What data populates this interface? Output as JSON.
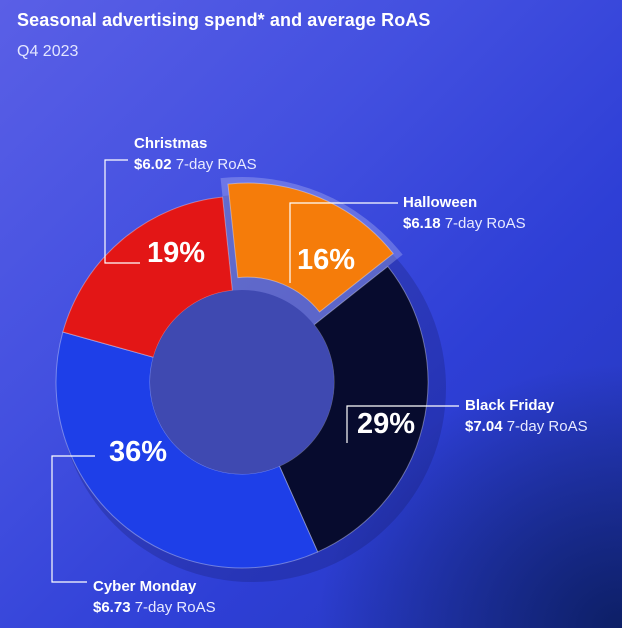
{
  "title": "Seasonal advertising spend* and average RoAS",
  "subtitle": "Q4 2023",
  "colors": {
    "background": "#3d49dd",
    "leader": "#ffffff"
  },
  "chart_data": {
    "type": "pie",
    "variant": "donut",
    "title": "Seasonal advertising spend* and average RoAS",
    "subtitle": "Q4 2023",
    "roas_unit": "7-day RoAS",
    "slices": [
      {
        "name": "Halloween",
        "value": 16,
        "label": "16%",
        "roas": "$6.18",
        "color": "#f57c0a"
      },
      {
        "name": "Black Friday",
        "value": 29,
        "label": "29%",
        "roas": "$7.04",
        "color": "#070b2e"
      },
      {
        "name": "Cyber Monday",
        "value": 36,
        "label": "36%",
        "roas": "$6.73",
        "color": "#1e3fe8"
      },
      {
        "name": "Christmas",
        "value": 19,
        "label": "19%",
        "roas": "$6.02",
        "color": "#e31616"
      }
    ]
  }
}
